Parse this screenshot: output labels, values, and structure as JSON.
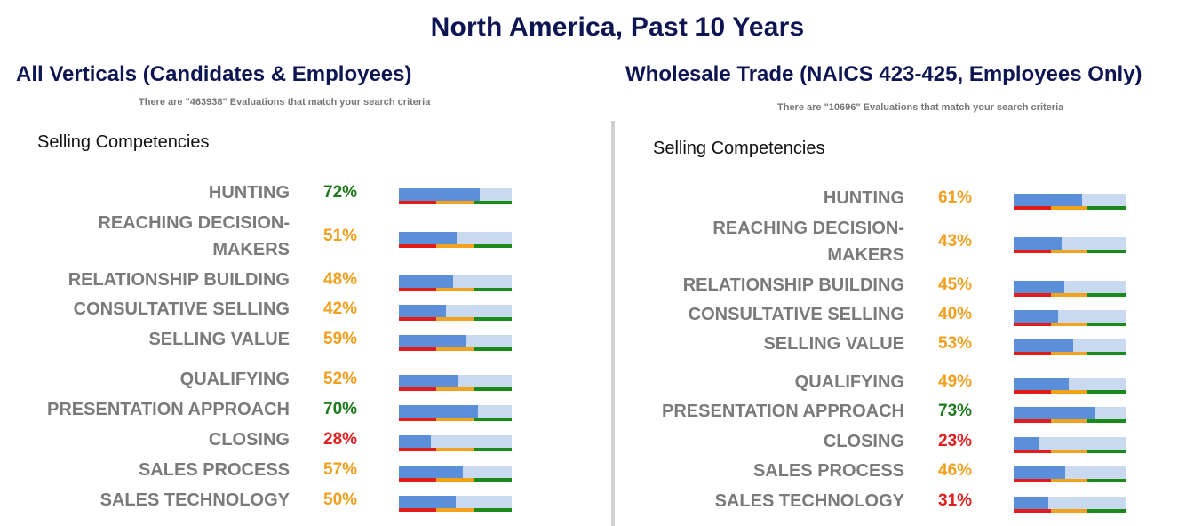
{
  "title": "North America, Past 10 Years",
  "colors": {
    "title": "#0e1553",
    "pct_green": "#1d7a1d",
    "pct_orange": "#f0a020",
    "pct_red": "#e02020",
    "bar_fill": "#5b8fd9",
    "bar_track": "#c9daf0",
    "scale_red": "#e21b1b",
    "scale_orange": "#f2a21d",
    "scale_green": "#1a8a1a"
  },
  "panels": [
    {
      "heading": "All Verticals (Candidates & Employees)",
      "subtitle": "There are \"463938\" Evaluations that match your search criteria",
      "section": "Selling Competencies"
    },
    {
      "heading": "Wholesale Trade (NAICS 423-425, Employees Only)",
      "subtitle": "There are \"10696\" Evaluations that match your search criteria",
      "section": "Selling Competencies"
    }
  ],
  "chart_data": [
    {
      "type": "bar",
      "title": "All Verticals (Candidates & Employees)",
      "subtitle": "Selling Competencies",
      "categories": [
        "HUNTING",
        "REACHING DECISION-MAKERS",
        "RELATIONSHIP BUILDING",
        "CONSULTATIVE SELLING",
        "SELLING VALUE",
        "QUALIFYING",
        "PRESENTATION APPROACH",
        "CLOSING",
        "SALES PROCESS",
        "SALES TECHNOLOGY"
      ],
      "label_lines": [
        [
          "HUNTING"
        ],
        [
          "REACHING DECISION-",
          "MAKERS"
        ],
        [
          "RELATIONSHIP BUILDING"
        ],
        [
          "CONSULTATIVE SELLING"
        ],
        [
          "SELLING VALUE"
        ],
        [
          "QUALIFYING"
        ],
        [
          "PRESENTATION APPROACH"
        ],
        [
          "CLOSING"
        ],
        [
          "SALES PROCESS"
        ],
        [
          "SALES TECHNOLOGY"
        ]
      ],
      "values": [
        72,
        51,
        48,
        42,
        59,
        52,
        70,
        28,
        57,
        50
      ],
      "value_labels": [
        "72%",
        "51%",
        "48%",
        "42%",
        "59%",
        "52%",
        "70%",
        "28%",
        "57%",
        "50%"
      ],
      "ylim": [
        0,
        100
      ]
    },
    {
      "type": "bar",
      "title": "Wholesale Trade (NAICS 423-425, Employees Only)",
      "subtitle": "Selling Competencies",
      "categories": [
        "HUNTING",
        "REACHING DECISION-MAKERS",
        "RELATIONSHIP BUILDING",
        "CONSULTATIVE SELLING",
        "SELLING VALUE",
        "QUALIFYING",
        "PRESENTATION APPROACH",
        "CLOSING",
        "SALES PROCESS",
        "SALES TECHNOLOGY"
      ],
      "label_lines": [
        [
          "HUNTING"
        ],
        [
          "REACHING DECISION-",
          "MAKERS"
        ],
        [
          "RELATIONSHIP BUILDING"
        ],
        [
          "CONSULTATIVE SELLING"
        ],
        [
          "SELLING VALUE"
        ],
        [
          "QUALIFYING"
        ],
        [
          "PRESENTATION APPROACH"
        ],
        [
          "CLOSING"
        ],
        [
          "SALES PROCESS"
        ],
        [
          "SALES TECHNOLOGY"
        ]
      ],
      "values": [
        61,
        43,
        45,
        40,
        53,
        49,
        73,
        23,
        46,
        31
      ],
      "value_labels": [
        "61%",
        "43%",
        "45%",
        "40%",
        "53%",
        "49%",
        "73%",
        "23%",
        "46%",
        "31%"
      ],
      "ylim": [
        0,
        100
      ]
    }
  ]
}
